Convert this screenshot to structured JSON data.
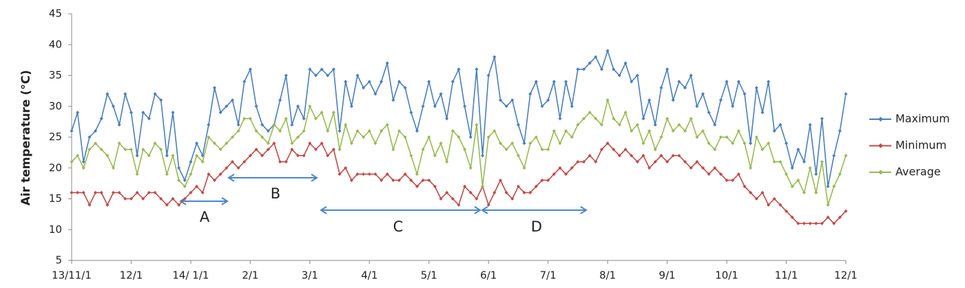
{
  "chart_data": {
    "type": "line",
    "y_label": "Air temperature (°C)",
    "categories": [
      "13/11/1",
      null,
      null,
      null,
      null,
      null,
      null,
      null,
      null,
      null,
      "12/1",
      null,
      null,
      null,
      null,
      null,
      null,
      null,
      null,
      null,
      "14/ 1/1",
      null,
      null,
      null,
      null,
      null,
      null,
      null,
      null,
      null,
      "2/1",
      null,
      null,
      null,
      null,
      null,
      null,
      null,
      null,
      null,
      "3/1",
      null,
      null,
      null,
      null,
      null,
      null,
      null,
      null,
      null,
      "4/1",
      null,
      null,
      null,
      null,
      null,
      null,
      null,
      null,
      null,
      "5/1",
      null,
      null,
      null,
      null,
      null,
      null,
      null,
      null,
      null,
      "6/1",
      null,
      null,
      null,
      null,
      null,
      null,
      null,
      null,
      null,
      "7/1",
      null,
      null,
      null,
      null,
      null,
      null,
      null,
      null,
      null,
      "8/1",
      null,
      null,
      null,
      null,
      null,
      null,
      null,
      null,
      null,
      "9/1",
      null,
      null,
      null,
      null,
      null,
      null,
      null,
      null,
      null,
      "10/1",
      null,
      null,
      null,
      null,
      null,
      null,
      null,
      null,
      null,
      "11/1",
      null,
      null,
      null,
      null,
      null,
      null,
      null,
      null,
      null,
      "12/1"
    ],
    "series": [
      {
        "name": "Maximum",
        "color": "#4a7ebb",
        "values": [
          26,
          29,
          21,
          25,
          26,
          28,
          32,
          30,
          27,
          32,
          29,
          22,
          29,
          28,
          32,
          31,
          22,
          29,
          20,
          18,
          21,
          24,
          22,
          27,
          33,
          29,
          30,
          31,
          27,
          34,
          36,
          30,
          27,
          26,
          27,
          31,
          35,
          27,
          30,
          28,
          36,
          35,
          36,
          35,
          36,
          26,
          34,
          30,
          35,
          33,
          34,
          32,
          34,
          37,
          31,
          34,
          33,
          29,
          26,
          30,
          34,
          30,
          32,
          28,
          34,
          36,
          30,
          25,
          36,
          22,
          35,
          38,
          31,
          30,
          31,
          27,
          24,
          32,
          34,
          30,
          31,
          34,
          28,
          34,
          30,
          36,
          36,
          37,
          38,
          36,
          39,
          36,
          35,
          37,
          34,
          35,
          28,
          31,
          27,
          33,
          36,
          31,
          34,
          33,
          35,
          30,
          32,
          29,
          27,
          31,
          34,
          30,
          34,
          32,
          24,
          33,
          29,
          34,
          26,
          27,
          24,
          20,
          23,
          21,
          27,
          19,
          28,
          17,
          22,
          26,
          32
        ]
      },
      {
        "name": "Minimum",
        "color": "#be4b48",
        "values": [
          16,
          16,
          16,
          14,
          16,
          16,
          14,
          16,
          16,
          15,
          15,
          16,
          15,
          16,
          16,
          15,
          14,
          15,
          14,
          15,
          16,
          17,
          16,
          19,
          18,
          19,
          20,
          21,
          20,
          21,
          22,
          23,
          22,
          23,
          24,
          21,
          21,
          23,
          22,
          22,
          24,
          23,
          24,
          22,
          23,
          19,
          20,
          18,
          19,
          19,
          19,
          19,
          18,
          19,
          18,
          18,
          19,
          18,
          17,
          18,
          18,
          17,
          15,
          16,
          15,
          14,
          17,
          16,
          15,
          17,
          14,
          16,
          18,
          16,
          15,
          17,
          16,
          16,
          17,
          18,
          18,
          19,
          20,
          19,
          20,
          21,
          21,
          22,
          21,
          23,
          24,
          23,
          22,
          23,
          22,
          21,
          22,
          20,
          21,
          22,
          21,
          22,
          22,
          21,
          20,
          21,
          20,
          19,
          20,
          19,
          18,
          18,
          19,
          17,
          16,
          15,
          16,
          14,
          15,
          14,
          13,
          12,
          11,
          11,
          11,
          11,
          11,
          12,
          11,
          12,
          13
        ]
      },
      {
        "name": "Average",
        "color": "#98b954",
        "values": [
          21,
          22,
          20,
          23,
          24,
          23,
          22,
          20,
          24,
          23,
          23,
          19,
          23,
          22,
          24,
          23,
          19,
          22,
          18,
          17,
          19,
          22,
          21,
          25,
          24,
          23,
          24,
          25,
          26,
          28,
          28,
          26,
          25,
          24,
          27,
          26,
          28,
          24,
          25,
          26,
          30,
          28,
          29,
          26,
          29,
          23,
          27,
          24,
          26,
          25,
          26,
          24,
          26,
          27,
          23,
          26,
          25,
          22,
          19,
          23,
          25,
          22,
          24,
          21,
          26,
          25,
          23,
          20,
          27,
          17,
          25,
          26,
          24,
          23,
          24,
          22,
          20,
          24,
          25,
          23,
          23,
          26,
          24,
          26,
          25,
          27,
          28,
          29,
          28,
          27,
          31,
          28,
          27,
          29,
          26,
          27,
          24,
          26,
          23,
          25,
          28,
          26,
          27,
          26,
          28,
          25,
          26,
          24,
          23,
          25,
          25,
          24,
          26,
          24,
          20,
          25,
          23,
          24,
          21,
          21,
          19,
          17,
          18,
          16,
          20,
          16,
          21,
          14,
          17,
          19,
          22
        ]
      }
    ],
    "ylim": [
      5,
      45
    ],
    "yticks": [
      5,
      10,
      15,
      20,
      25,
      30,
      35,
      40,
      45
    ],
    "annotations": [
      "A",
      "B",
      "C",
      "D"
    ]
  }
}
